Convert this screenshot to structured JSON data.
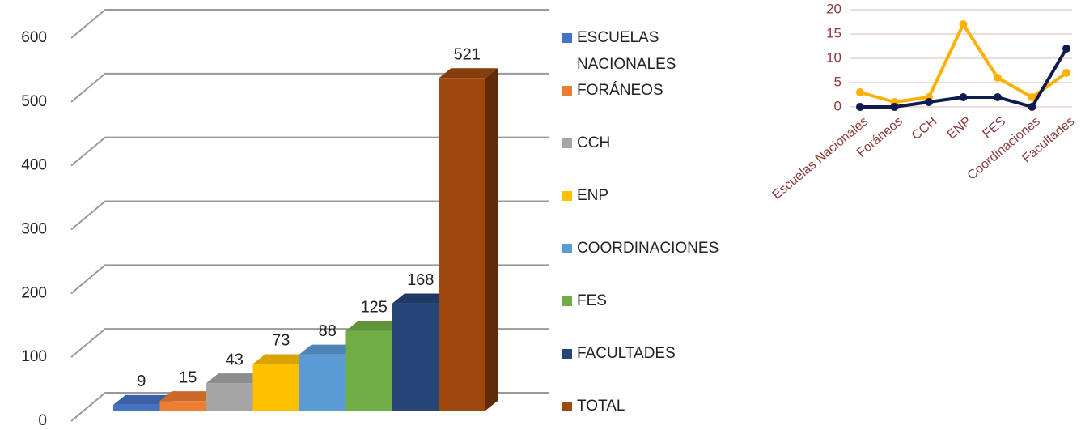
{
  "chart_data": [
    {
      "type": "bar3d",
      "series": [
        {
          "name": "ESCUELAS NACIONALES",
          "color": "#4472c4",
          "values": [
            9
          ]
        },
        {
          "name": "FORÁNEOS",
          "color": "#ed7d31",
          "values": [
            15
          ]
        },
        {
          "name": "CCH",
          "color": "#a5a5a5",
          "values": [
            43
          ]
        },
        {
          "name": "ENP",
          "color": "#ffc000",
          "values": [
            73
          ]
        },
        {
          "name": "COORDINACIONES",
          "color": "#5b9bd5",
          "values": [
            88
          ]
        },
        {
          "name": "FES",
          "color": "#70ad47",
          "values": [
            125
          ]
        },
        {
          "name": "FACULTADES",
          "color": "#264478",
          "values": [
            168
          ]
        },
        {
          "name": "TOTAL",
          "color": "#9e480e",
          "values": [
            521
          ]
        }
      ],
      "ylim": [
        0,
        600
      ],
      "yticks": [
        0,
        100,
        200,
        300,
        400,
        500,
        600
      ],
      "grid": true,
      "legend": "right"
    },
    {
      "type": "line",
      "categories": [
        "Escuelas Nacionales",
        "Foráneos",
        "CCH",
        "ENP",
        "FES",
        "Coordinaciones",
        "Facultades"
      ],
      "series": [
        {
          "color": "#ffb000",
          "values": [
            3,
            1,
            2,
            17,
            6,
            2,
            7
          ]
        },
        {
          "color": "#0f1a4f",
          "values": [
            0,
            0,
            1,
            2,
            2,
            0,
            12
          ]
        }
      ],
      "ylim": [
        0,
        20
      ],
      "yticks": [
        0,
        5,
        10,
        15,
        20
      ],
      "grid": true
    }
  ]
}
